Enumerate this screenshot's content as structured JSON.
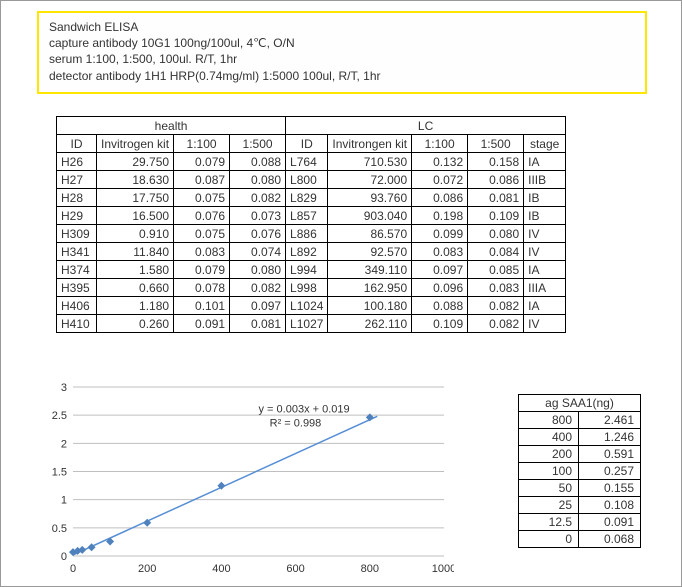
{
  "header": {
    "line1": "Sandwich ELISA",
    "line2": "capture antibody 10G1 100ng/100ul, 4℃, O/N",
    "line3": "serum 1:100, 1:500, 100ul. R/T, 1hr",
    "line4": "detector antibody 1H1 HRP(0.74mg/ml) 1:5000 100ul, R/T, 1hr"
  },
  "main_table": {
    "group1": "health",
    "group2": "LC",
    "cols": {
      "id": "ID",
      "kit1": "Invitrogen kit",
      "kit2": "Invitrongen kit",
      "d100": "1:100",
      "d500": "1:500",
      "stage": "stage"
    },
    "rows": [
      {
        "hid": "H26",
        "hkit": "29.750",
        "h100": "0.079",
        "h500": "0.088",
        "lid": "L764",
        "lkit": "710.530",
        "l100": "0.132",
        "l500": "0.158",
        "stage": "IA"
      },
      {
        "hid": "H27",
        "hkit": "18.630",
        "h100": "0.087",
        "h500": "0.080",
        "lid": "L800",
        "lkit": "72.000",
        "l100": "0.072",
        "l500": "0.086",
        "stage": "IIIB"
      },
      {
        "hid": "H28",
        "hkit": "17.750",
        "h100": "0.075",
        "h500": "0.082",
        "lid": "L829",
        "lkit": "93.760",
        "l100": "0.086",
        "l500": "0.081",
        "stage": "IB"
      },
      {
        "hid": "H29",
        "hkit": "16.500",
        "h100": "0.076",
        "h500": "0.073",
        "lid": "L857",
        "lkit": "903.040",
        "l100": "0.198",
        "l500": "0.109",
        "stage": "IB"
      },
      {
        "hid": "H309",
        "hkit": "0.910",
        "h100": "0.075",
        "h500": "0.076",
        "lid": "L886",
        "lkit": "86.570",
        "l100": "0.099",
        "l500": "0.080",
        "stage": "IV"
      },
      {
        "hid": "H341",
        "hkit": "11.840",
        "h100": "0.083",
        "h500": "0.074",
        "lid": "L892",
        "lkit": "92.570",
        "l100": "0.083",
        "l500": "0.084",
        "stage": "IV"
      },
      {
        "hid": "H374",
        "hkit": "1.580",
        "h100": "0.079",
        "h500": "0.080",
        "lid": "L994",
        "lkit": "349.110",
        "l100": "0.097",
        "l500": "0.085",
        "stage": "IA"
      },
      {
        "hid": "H395",
        "hkit": "0.660",
        "h100": "0.078",
        "h500": "0.082",
        "lid": "L998",
        "lkit": "162.950",
        "l100": "0.096",
        "l500": "0.083",
        "stage": "IIIA"
      },
      {
        "hid": "H406",
        "hkit": "1.180",
        "h100": "0.101",
        "h500": "0.097",
        "lid": "L1024",
        "lkit": "100.180",
        "l100": "0.088",
        "l500": "0.082",
        "stage": "IA"
      },
      {
        "hid": "H410",
        "hkit": "0.260",
        "h100": "0.091",
        "h500": "0.081",
        "lid": "L1027",
        "lkit": "262.110",
        "l100": "0.109",
        "l500": "0.082",
        "stage": "IV"
      }
    ]
  },
  "chart": {
    "type": "scatter",
    "eq_line1": "y = 0.003x + 0.019",
    "eq_line2": "R² = 0.998",
    "xlim": [
      0,
      1000
    ],
    "ylim": [
      0,
      3
    ],
    "xticks": [
      0,
      200,
      400,
      600,
      800,
      1000
    ],
    "yticks": [
      0,
      0.5,
      1,
      1.5,
      2,
      2.5,
      3
    ],
    "marker_color": "#4f81bd",
    "trend_color": "#558ed5",
    "grid_color": "#bfbfbf",
    "background_color": "#ffffff",
    "label_fontsize": 11,
    "points": [
      {
        "x": 0,
        "y": 0.068
      },
      {
        "x": 12.5,
        "y": 0.091
      },
      {
        "x": 25,
        "y": 0.108
      },
      {
        "x": 50,
        "y": 0.155
      },
      {
        "x": 100,
        "y": 0.257
      },
      {
        "x": 200,
        "y": 0.591
      },
      {
        "x": 400,
        "y": 1.246
      },
      {
        "x": 800,
        "y": 2.461
      }
    ]
  },
  "std_table": {
    "title": "ag SAA1(ng)",
    "rows": [
      {
        "x": "800",
        "y": "2.461"
      },
      {
        "x": "400",
        "y": "1.246"
      },
      {
        "x": "200",
        "y": "0.591"
      },
      {
        "x": "100",
        "y": "0.257"
      },
      {
        "x": "50",
        "y": "0.155"
      },
      {
        "x": "25",
        "y": "0.108"
      },
      {
        "x": "12.5",
        "y": "0.091"
      },
      {
        "x": "0",
        "y": "0.068"
      }
    ]
  }
}
